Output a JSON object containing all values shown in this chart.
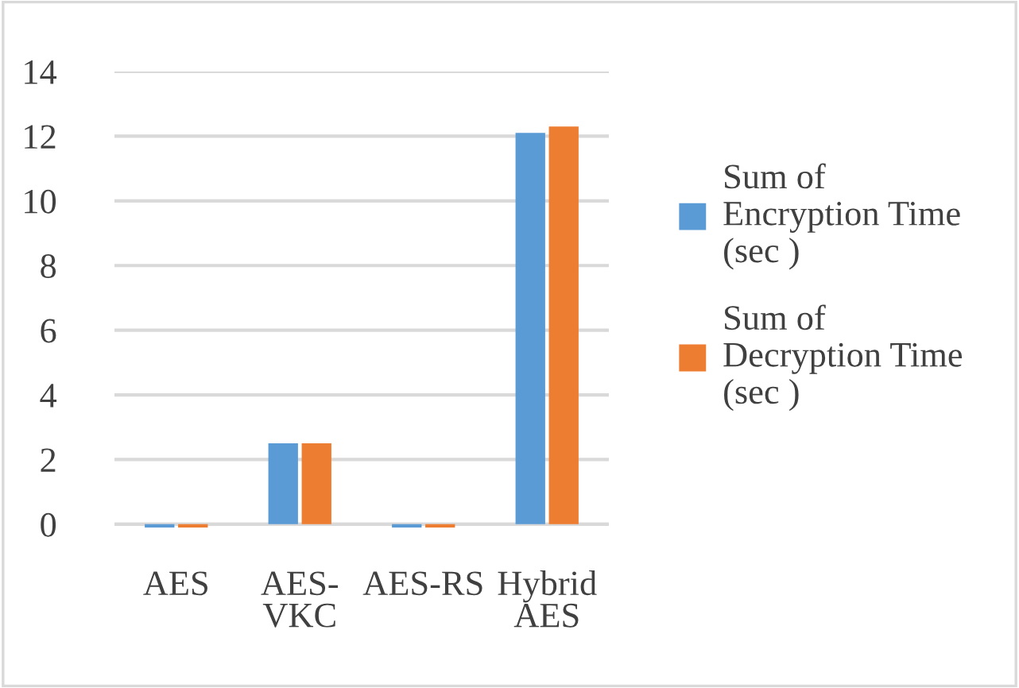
{
  "chart_data": {
    "type": "bar",
    "categories": [
      "AES",
      "AES-\nVKC",
      "AES-RS",
      "Hybrid\nAES"
    ],
    "series": [
      {
        "name": "Sum of\nEncryption Time\n(sec )",
        "color": "#5b9bd5",
        "values": [
          -0.1,
          2.5,
          -0.1,
          12.1
        ]
      },
      {
        "name": "Sum of\nDecryption Time\n(sec )",
        "color": "#ed7d31",
        "values": [
          -0.1,
          2.5,
          -0.1,
          12.3
        ]
      }
    ],
    "ylim": [
      -0.2,
      14
    ],
    "yticks": [
      0,
      2,
      4,
      6,
      8,
      10,
      12,
      14
    ],
    "grid": "y",
    "legend": "right"
  }
}
